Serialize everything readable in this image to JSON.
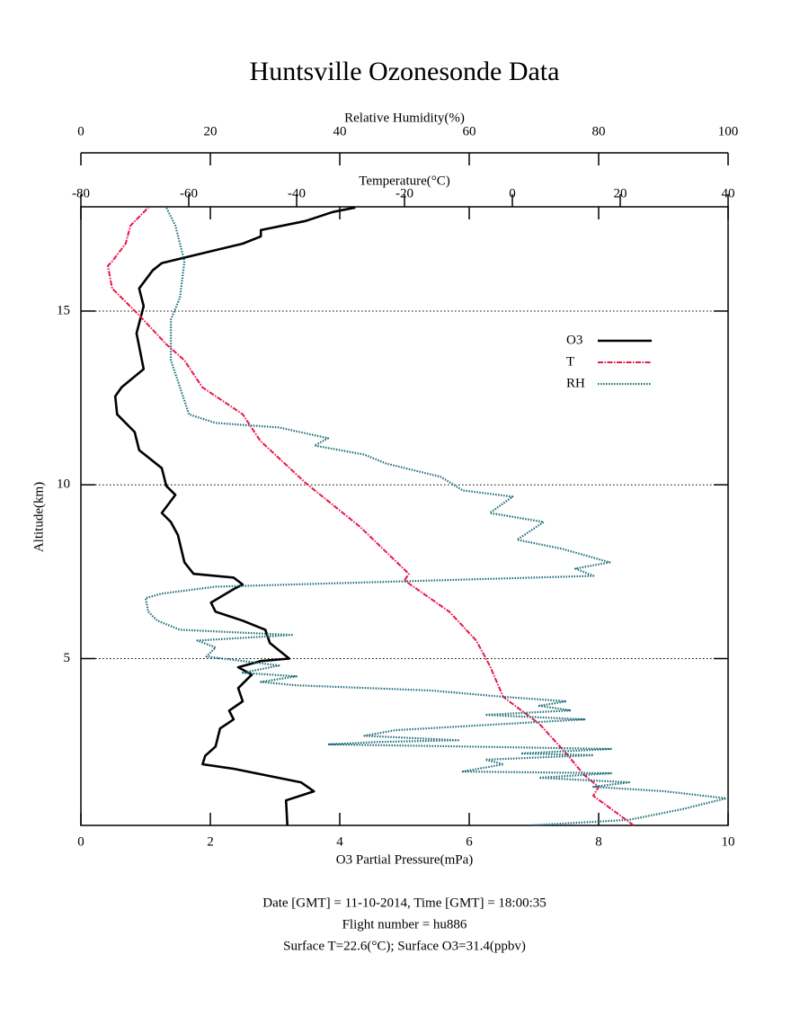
{
  "chart_data": {
    "type": "line",
    "title": "Huntsville Ozonesonde Data",
    "x_label": "O3 Partial Pressure(mPa)",
    "y_label": "Altitude(km)",
    "temperature_label": "Temperature(°C)",
    "humidity_label": "Relative Humidity(%)",
    "xlim": [
      0,
      10
    ],
    "xticks": [
      0,
      2,
      4,
      6,
      8,
      10
    ],
    "temperature_lim": [
      -80,
      40
    ],
    "temperature_ticks": [
      -80,
      -60,
      -40,
      -20,
      0,
      20,
      40
    ],
    "humidity_lim": [
      0,
      100
    ],
    "humidity_ticks": [
      0,
      20,
      40,
      60,
      80,
      100
    ],
    "ylim": [
      0.2,
      18
    ],
    "yticks": [
      5,
      10,
      15
    ],
    "grid": true,
    "legend": "upper right",
    "series": [
      {
        "name": "O3",
        "color": "#000000",
        "axis": "x",
        "x": [
          3.19,
          3.17,
          3.6,
          3.4,
          2.36,
          1.88,
          1.92,
          2.08,
          2.15,
          2.36,
          2.29,
          2.5,
          2.43,
          2.64,
          2.43,
          2.78,
          3.22,
          2.92,
          2.85,
          2.5,
          2.08,
          2.01,
          2.36,
          2.5,
          2.36,
          1.74,
          1.6,
          1.5,
          1.39,
          1.25,
          1.46,
          1.32,
          1.25,
          0.9,
          0.83,
          0.56,
          0.53,
          0.63,
          0.97,
          0.86,
          0.97,
          0.9,
          1.11,
          1.25,
          1.94,
          2.5,
          2.78,
          2.78,
          3.47,
          3.89,
          4.24
        ],
        "values": [
          0.2,
          0.92,
          1.18,
          1.44,
          1.83,
          1.96,
          2.2,
          2.47,
          2.99,
          3.25,
          3.5,
          3.77,
          4.15,
          4.54,
          4.75,
          4.93,
          5.0,
          5.45,
          5.83,
          6.09,
          6.35,
          6.61,
          7.0,
          7.13,
          7.33,
          7.44,
          7.77,
          8.55,
          8.93,
          9.19,
          9.71,
          9.97,
          10.48,
          11.0,
          11.52,
          12.03,
          12.55,
          12.81,
          13.33,
          14.36,
          15.14,
          15.65,
          16.17,
          16.38,
          16.69,
          16.94,
          17.15,
          17.33,
          17.59,
          17.85,
          17.98
        ]
      },
      {
        "name": "T",
        "color": "#e8174a",
        "axis": "temperature",
        "x": [
          22.5,
          15,
          16,
          13.3,
          10,
          5,
          -1.7,
          -4.2,
          -6.7,
          -11.7,
          -20,
          -19.2,
          -28.3,
          -38.3,
          -46.7,
          -50,
          -57.5,
          -60.8,
          -64.2,
          -69.2,
          -74.2,
          -75,
          -74.2,
          -71.7,
          -70.8,
          -67.5
        ],
        "values": [
          0.2,
          1.05,
          1.31,
          1.65,
          2.27,
          3.12,
          3.9,
          4.8,
          5.52,
          6.35,
          7.25,
          7.44,
          8.8,
          10.05,
          11.26,
          12.03,
          12.81,
          13.58,
          14.05,
          14.88,
          15.65,
          16.3,
          16.43,
          16.94,
          17.46,
          17.98
        ]
      },
      {
        "name": "RH",
        "color": "#1f6f78",
        "axis": "humidity",
        "x": [
          69.4,
          84.7,
          93,
          99.7,
          90.3,
          79.2,
          84.7,
          70.8,
          81.9,
          59,
          65.3,
          62.5,
          79.2,
          68,
          81.9,
          59.7,
          38.2,
          45.8,
          58.3,
          43.8,
          48.6,
          77.8,
          62.5,
          75.7,
          70.8,
          75,
          65.3,
          54.2,
          33.3,
          27.8,
          33.3,
          25,
          30.6,
          19.4,
          20.8,
          18,
          32.6,
          15.3,
          11.8,
          10.4,
          10,
          12.5,
          20.8,
          79.2,
          76.4,
          81.7,
          74.3,
          67.4,
          71.5,
          63.2,
          66.7,
          59,
          55.6,
          47.2,
          43.8,
          36.1,
          38.2,
          30.6,
          20.8,
          16.7,
          15.3,
          13.9,
          13.9,
          15.3,
          16,
          14.6,
          13.2
        ],
        "values": [
          0.2,
          0.36,
          0.67,
          0.98,
          1.18,
          1.31,
          1.44,
          1.57,
          1.7,
          1.75,
          1.96,
          2.09,
          2.22,
          2.27,
          2.4,
          2.47,
          2.53,
          2.6,
          2.65,
          2.78,
          2.94,
          3.25,
          3.38,
          3.51,
          3.64,
          3.77,
          3.9,
          4.08,
          4.23,
          4.33,
          4.49,
          4.59,
          4.8,
          5.06,
          5.32,
          5.52,
          5.68,
          5.83,
          6.09,
          6.35,
          6.74,
          6.87,
          7.07,
          7.38,
          7.59,
          7.77,
          8.16,
          8.42,
          8.93,
          9.19,
          9.66,
          9.84,
          10.23,
          10.61,
          10.87,
          11.13,
          11.34,
          11.65,
          11.78,
          12.03,
          12.81,
          13.58,
          14.75,
          15.39,
          16.43,
          17.46,
          17.98
        ]
      }
    ],
    "footer": [
      "Date [GMT] = 11-10-2014,  Time [GMT] = 18:00:35",
      "Flight number = hu886",
      "Surface T=22.6(°C); Surface O3=31.4(ppbv)"
    ]
  }
}
